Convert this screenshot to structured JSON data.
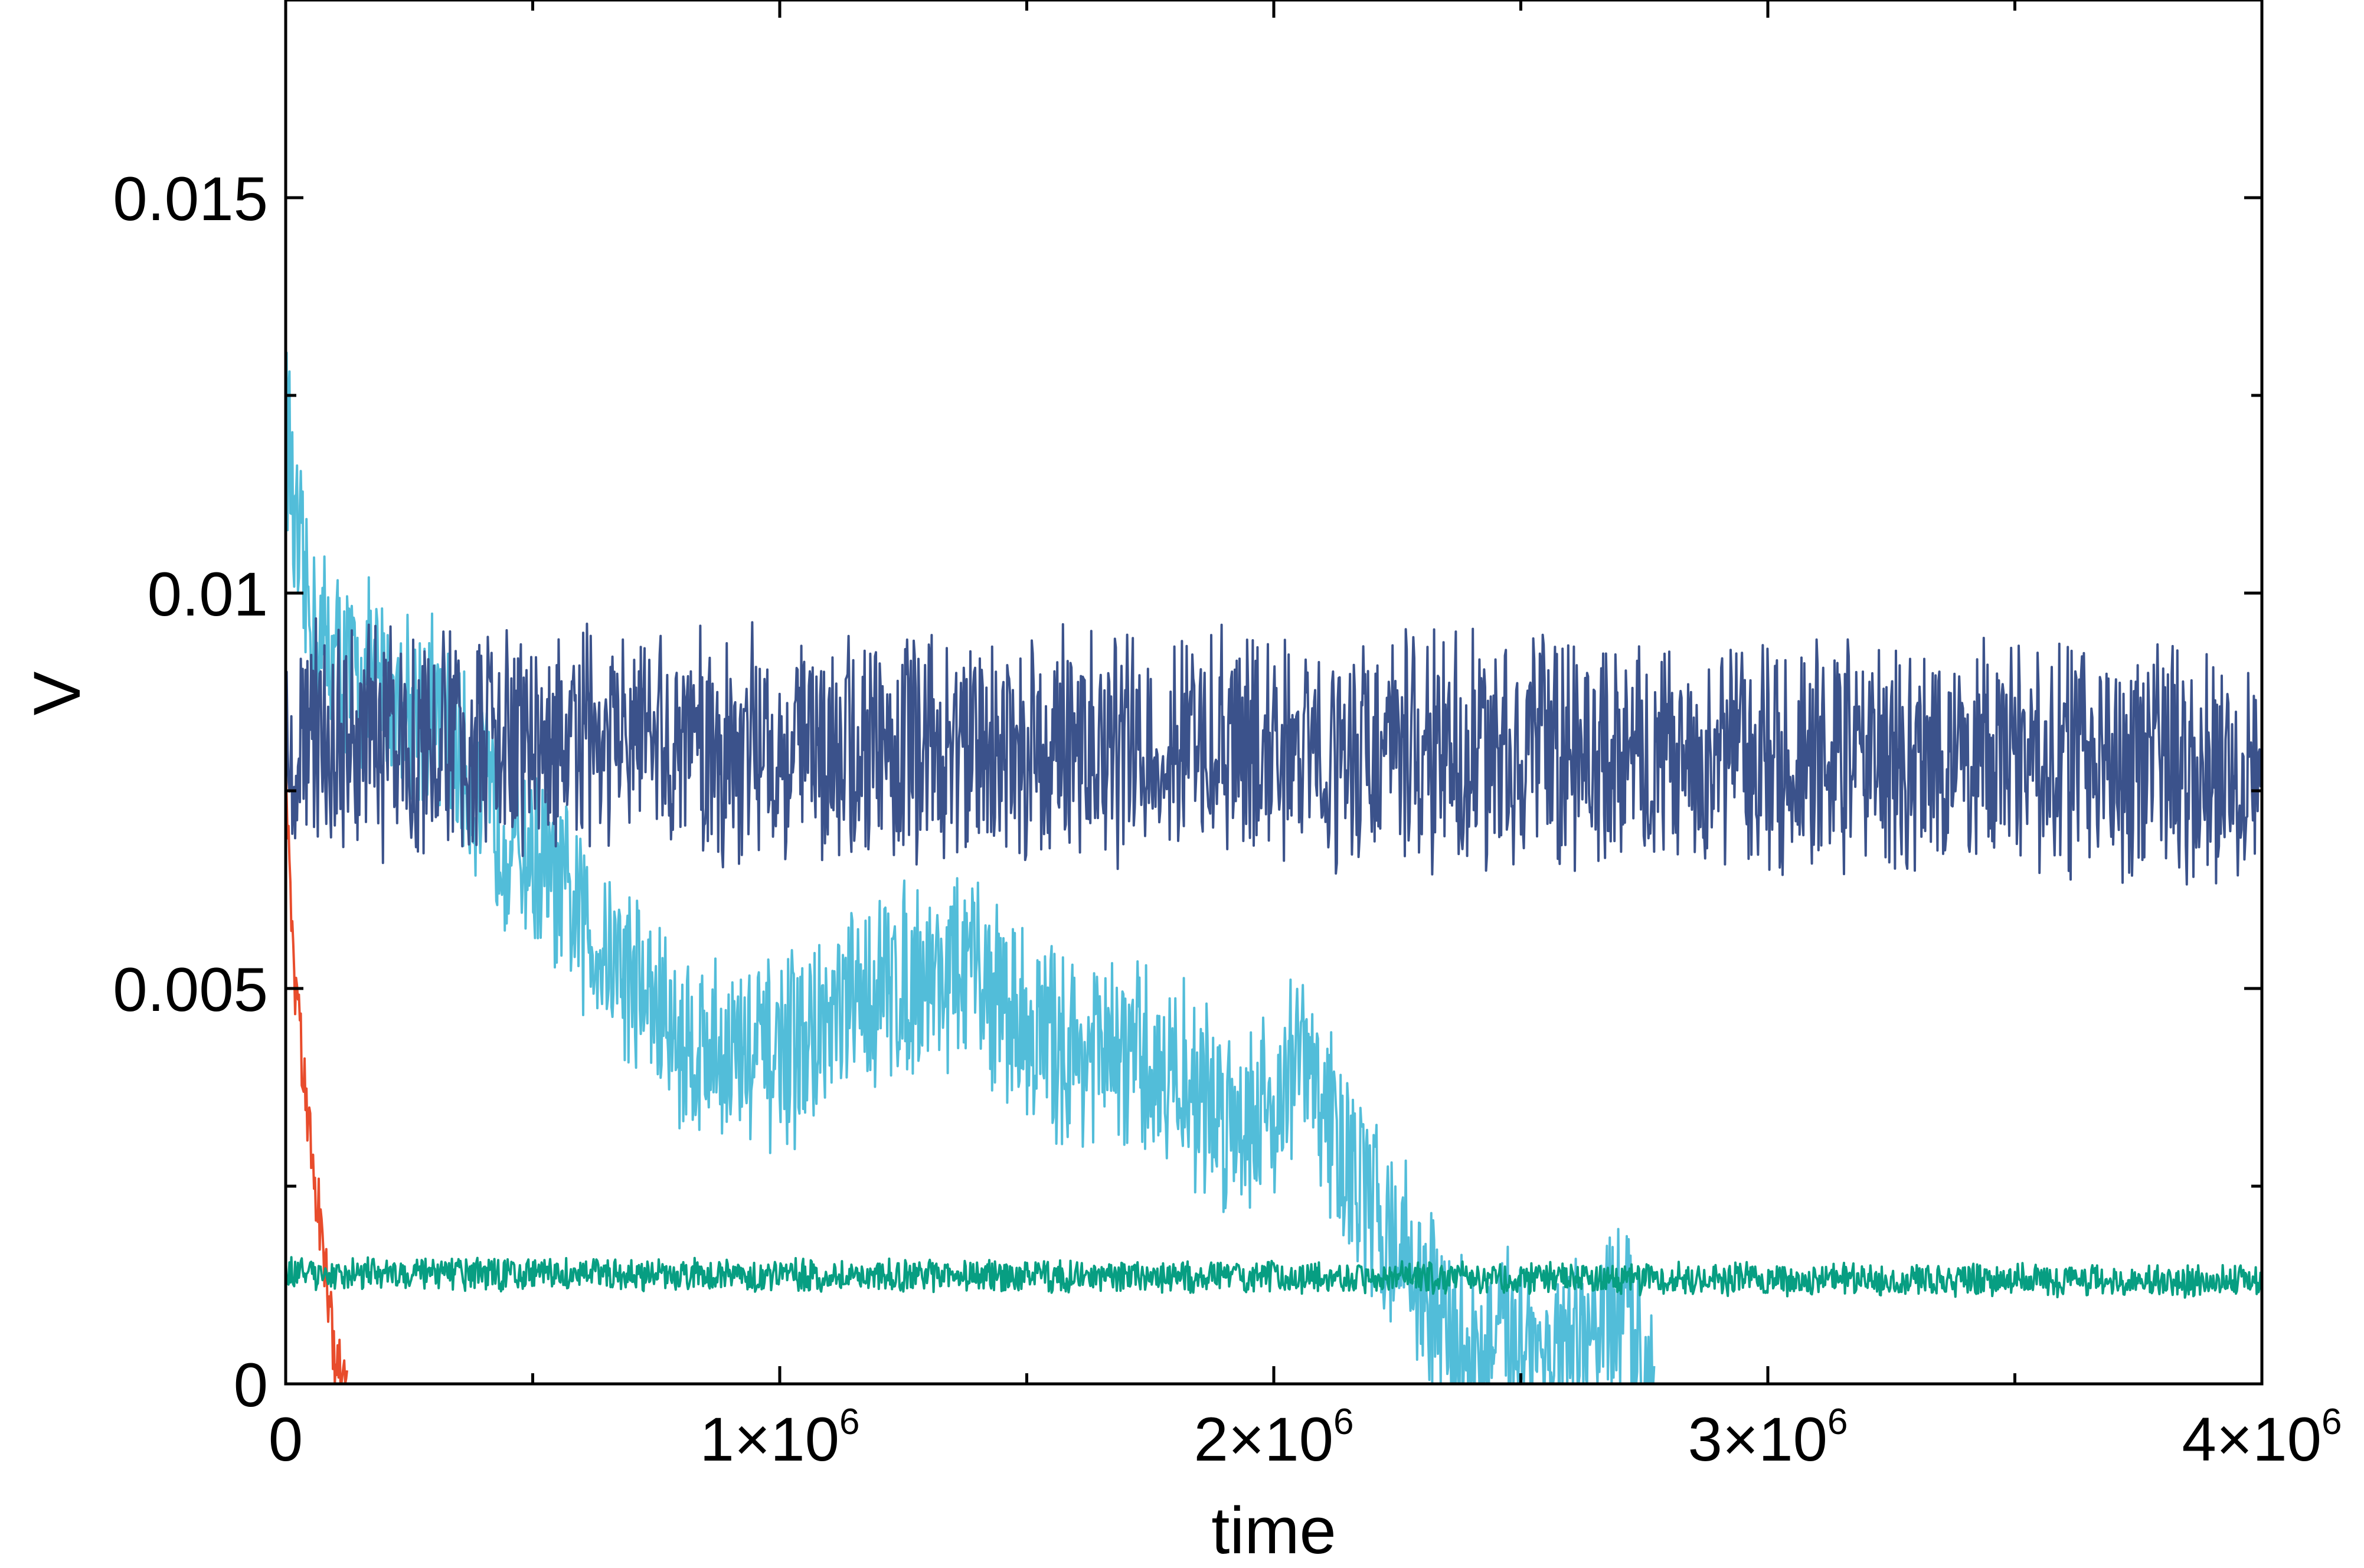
{
  "chart_data": {
    "type": "line",
    "title": "",
    "xlabel": "time",
    "ylabel": "V",
    "xlim": [
      0,
      4000000
    ],
    "ylim": [
      0,
      0.0175
    ],
    "grid": false,
    "legend": "none",
    "x_ticks": [
      {
        "value": 0,
        "label": "0",
        "exp": ""
      },
      {
        "value": 1000000,
        "label": "1×10",
        "exp": "6"
      },
      {
        "value": 2000000,
        "label": "2×10",
        "exp": "6"
      },
      {
        "value": 3000000,
        "label": "3×10",
        "exp": "6"
      },
      {
        "value": 4000000,
        "label": "4×10",
        "exp": "6"
      }
    ],
    "x_minor_ticks": [
      500000,
      1500000,
      2500000,
      3500000
    ],
    "y_ticks": [
      {
        "value": 0,
        "label": "0"
      },
      {
        "value": 0.005,
        "label": "0.005"
      },
      {
        "value": 0.01,
        "label": "0.01"
      },
      {
        "value": 0.015,
        "label": "0.015"
      }
    ],
    "y_minor_ticks": [
      0.0025,
      0.0075,
      0.0125
    ],
    "series": [
      {
        "color": "#52bdd9",
        "amplitude": 0.0011,
        "points": [
          [
            0,
            0.0125
          ],
          [
            20000,
            0.0105
          ],
          [
            60000,
            0.0095
          ],
          [
            120000,
            0.009
          ],
          [
            200000,
            0.0088
          ],
          [
            300000,
            0.0085
          ],
          [
            380000,
            0.0075
          ],
          [
            450000,
            0.007
          ],
          [
            520000,
            0.0065
          ],
          [
            600000,
            0.0058
          ],
          [
            700000,
            0.0052
          ],
          [
            800000,
            0.0043
          ],
          [
            900000,
            0.0042
          ],
          [
            1000000,
            0.0041
          ],
          [
            1100000,
            0.0045
          ],
          [
            1200000,
            0.005
          ],
          [
            1300000,
            0.0052
          ],
          [
            1400000,
            0.0052
          ],
          [
            1500000,
            0.0045
          ],
          [
            1600000,
            0.0042
          ],
          [
            1700000,
            0.0041
          ],
          [
            1800000,
            0.0039
          ],
          [
            1900000,
            0.0034
          ],
          [
            2000000,
            0.0035
          ],
          [
            2050000,
            0.0042
          ],
          [
            2100000,
            0.0035
          ],
          [
            2150000,
            0.0028
          ],
          [
            2200000,
            0.0022
          ],
          [
            2250000,
            0.0018
          ],
          [
            2300000,
            0.0012
          ],
          [
            2350000,
            0.0006
          ],
          [
            2400000,
            0.0003
          ],
          [
            2450000,
            0.0004
          ],
          [
            2500000,
            0.0008
          ],
          [
            2550000,
            0.0003
          ],
          [
            2600000,
            0.0002
          ],
          [
            2650000,
            0.0006
          ],
          [
            2700000,
            0.0009
          ],
          [
            2740000,
            0.0004
          ],
          [
            2770000,
            0.0
          ]
        ]
      },
      {
        "color": "#3b528b",
        "amplitude": 0.0013,
        "points": [
          [
            0,
            0.0082
          ],
          [
            100000,
            0.0081
          ],
          [
            4000000,
            0.0079
          ]
        ]
      },
      {
        "color": "#e84c2c",
        "amplitude": 0.0004,
        "points": [
          [
            0,
            0.0075
          ],
          [
            10000,
            0.0062
          ],
          [
            20000,
            0.005
          ],
          [
            40000,
            0.0036
          ],
          [
            60000,
            0.0025
          ],
          [
            80000,
            0.0015
          ],
          [
            90000,
            0.0009
          ],
          [
            100000,
            0.0004
          ],
          [
            115000,
            0.0002
          ],
          [
            125000,
            0.0
          ]
        ]
      },
      {
        "color": "#079e82",
        "amplitude": 0.00018,
        "points": [
          [
            0,
            0.0014
          ],
          [
            4000000,
            0.0013
          ]
        ]
      }
    ]
  }
}
